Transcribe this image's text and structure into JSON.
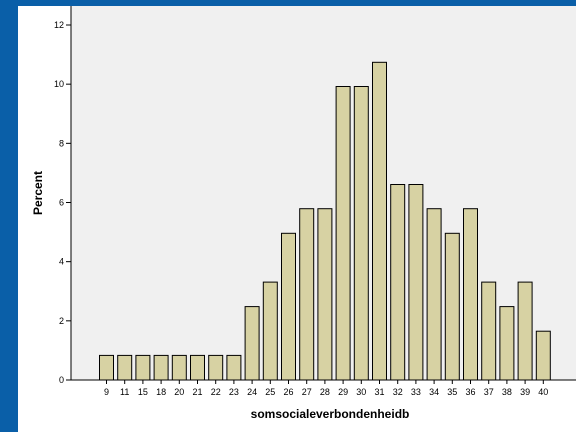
{
  "chart_data": {
    "type": "bar",
    "xlabel": "somsocialeverbondenheidb",
    "ylabel": "Percent",
    "ylim": [
      0,
      12
    ],
    "yticks": [
      0,
      2,
      4,
      6,
      8,
      10,
      12
    ],
    "grid": false,
    "categories": [
      "9",
      "11",
      "15",
      "18",
      "20",
      "21",
      "22",
      "23",
      "24",
      "25",
      "26",
      "27",
      "28",
      "29",
      "30",
      "31",
      "32",
      "33",
      "34",
      "35",
      "36",
      "37",
      "38",
      "39",
      "40"
    ],
    "values": [
      0.83,
      0.83,
      0.83,
      0.83,
      0.83,
      0.83,
      0.83,
      0.83,
      2.48,
      3.31,
      4.96,
      5.79,
      5.79,
      9.92,
      9.92,
      10.74,
      6.61,
      6.61,
      5.79,
      4.96,
      5.79,
      3.31,
      2.48,
      3.31,
      1.65
    ],
    "colors": {
      "bar_fill": "#d7d2a3",
      "bar_stroke": "#000000",
      "plot_bg": "#f0f0f0",
      "axis": "#000000",
      "frame": "#0a5fa8"
    }
  }
}
